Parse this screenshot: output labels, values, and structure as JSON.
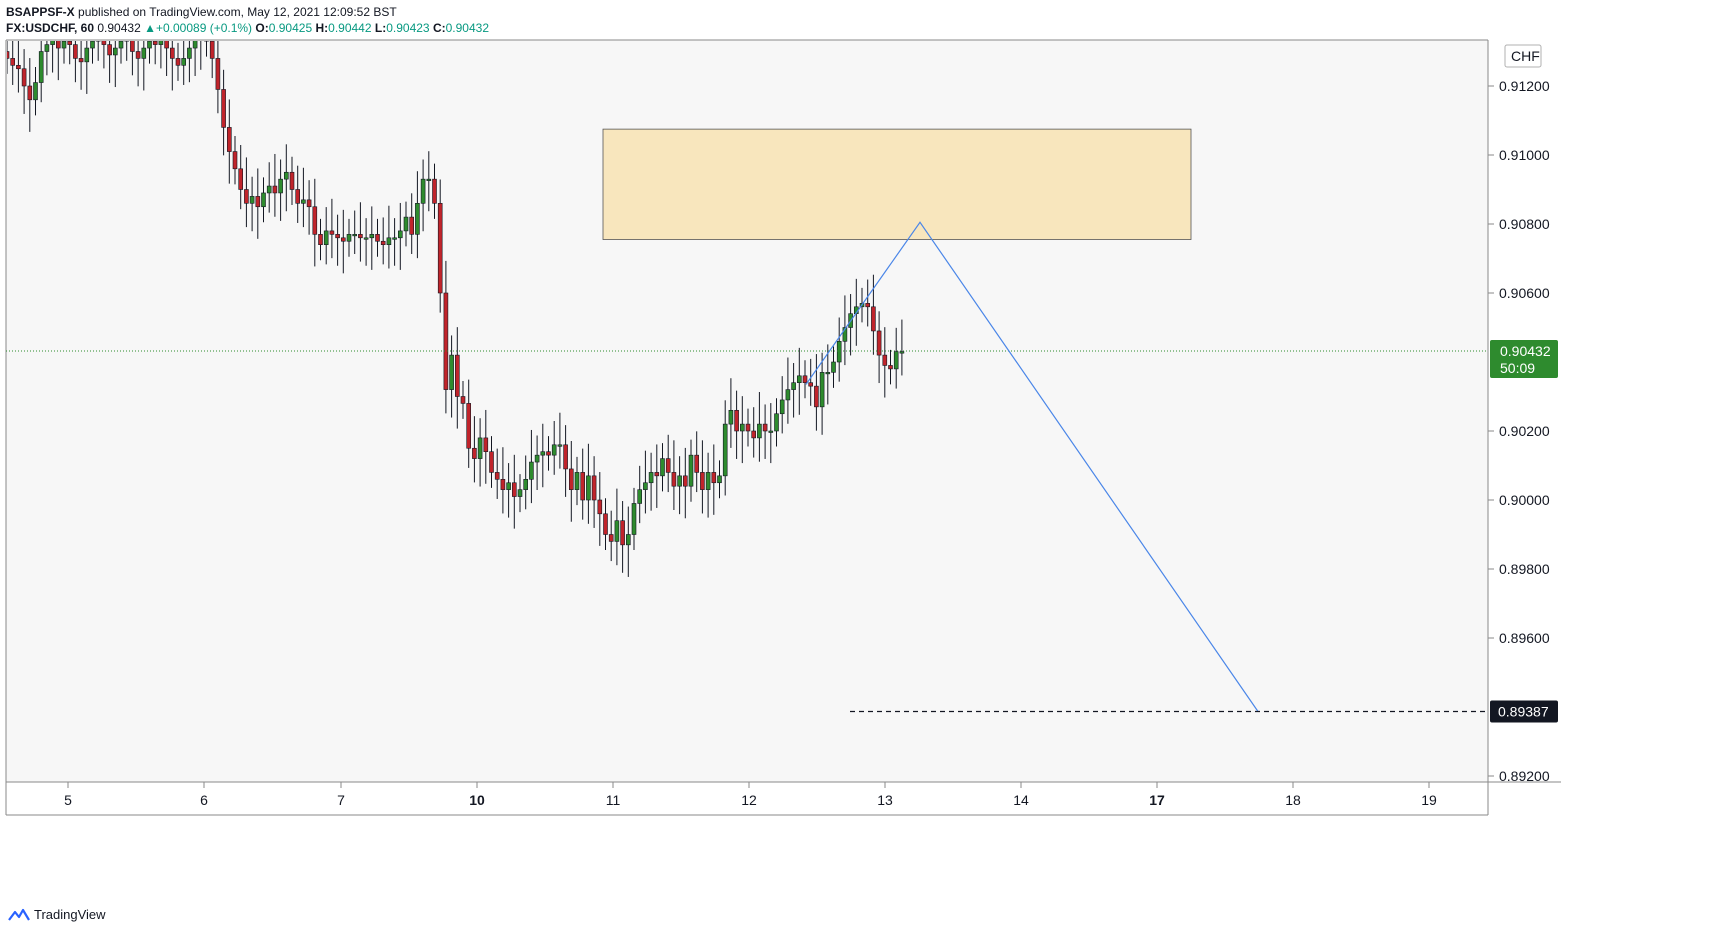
{
  "header": {
    "author": "BSAPPSF-X",
    "published_text": "published on TradingView.com, May 12, 2021 12:09:52 BST",
    "symbol": "FX:USDCHF, 60",
    "last": "0.90432",
    "change_arrow": "▲",
    "change": "+0.00089 (+0.1%)",
    "o_label": "O:",
    "o_value": "0.90425",
    "h_label": "H:",
    "h_value": "0.90442",
    "l_label": "L:",
    "l_value": "0.90423",
    "c_label": "C:",
    "c_value": "0.90432"
  },
  "price_axis": {
    "currency": "CHF",
    "current_price": "0.90432",
    "countdown": "50:09",
    "target_price": "0.89387"
  },
  "footer": {
    "brand": "TradingView",
    "logo_icon": "tradingview-logo-icon"
  },
  "colors": {
    "up": "#2e8b2e",
    "down": "#c0242b",
    "wick": "#131722",
    "zone_fill": "#f8e6bd",
    "zone_stroke": "#555555",
    "projection": "#4a86e8",
    "current_price": "#2e8b2e",
    "target_line": "#131722",
    "background": "#f7f7f7"
  },
  "chart_data": {
    "type": "candlestick",
    "timeframe": "60",
    "symbol": "FX:USDCHF",
    "y_ticks": [
      0.912,
      0.91,
      0.908,
      0.906,
      0.902,
      0.9,
      0.898,
      0.896,
      0.892
    ],
    "x_ticks": [
      {
        "label": "5",
        "bold": false
      },
      {
        "label": "6",
        "bold": false
      },
      {
        "label": "7",
        "bold": false
      },
      {
        "label": "10",
        "bold": true
      },
      {
        "label": "11",
        "bold": false
      },
      {
        "label": "12",
        "bold": false
      },
      {
        "label": "13",
        "bold": false
      },
      {
        "label": "14",
        "bold": false
      },
      {
        "label": "17",
        "bold": true
      },
      {
        "label": "18",
        "bold": false
      },
      {
        "label": "19",
        "bold": false
      }
    ],
    "current_price": 0.90432,
    "target_price": 0.89387,
    "resistance_zone": {
      "low": 0.90755,
      "high": 0.91075,
      "from_label": "11",
      "to_label": "13"
    },
    "projection_path": [
      {
        "date": "12",
        "price": 0.90335
      },
      {
        "date": "13",
        "price": 0.90805
      },
      {
        "date": "17",
        "price": 0.89387
      }
    ],
    "closes": [
      0.9128,
      0.9126,
      0.9125,
      0.912,
      0.9116,
      0.9121,
      0.913,
      0.9132,
      0.9134,
      0.9131,
      0.9133,
      0.9132,
      0.9128,
      0.9127,
      0.9131,
      0.9133,
      0.9135,
      0.9132,
      0.9129,
      0.9131,
      0.9133,
      0.9134,
      0.913,
      0.9128,
      0.9131,
      0.9133,
      0.9132,
      0.9134,
      0.9131,
      0.9128,
      0.9126,
      0.9128,
      0.9131,
      0.9134,
      0.9135,
      0.9133,
      0.9128,
      0.9119,
      0.9108,
      0.9101,
      0.9096,
      0.909,
      0.9086,
      0.9088,
      0.9085,
      0.9089,
      0.9091,
      0.9089,
      0.9093,
      0.9095,
      0.909,
      0.9086,
      0.9087,
      0.9085,
      0.9077,
      0.9074,
      0.9078,
      0.9077,
      0.9076,
      0.9075,
      0.9077,
      0.9077,
      0.9076,
      0.9076,
      0.9077,
      0.9075,
      0.9074,
      0.9076,
      0.9076,
      0.9078,
      0.9082,
      0.9077,
      0.9086,
      0.9093,
      0.9093,
      0.9086,
      0.906,
      0.9032,
      0.9042,
      0.903,
      0.9028,
      0.9015,
      0.9012,
      0.9018,
      0.9014,
      0.9008,
      0.9006,
      0.9003,
      0.9005,
      0.9001,
      0.9003,
      0.9006,
      0.9011,
      0.9013,
      0.9014,
      0.9013,
      0.9016,
      0.9016,
      0.9009,
      0.9003,
      0.9008,
      0.9,
      0.9007,
      0.9,
      0.8996,
      0.899,
      0.8988,
      0.8994,
      0.8987,
      0.899,
      0.8999,
      0.9003,
      0.9005,
      0.9008,
      0.9007,
      0.9012,
      0.9008,
      0.9004,
      0.9007,
      0.9004,
      0.9013,
      0.9008,
      0.9003,
      0.9008,
      0.9005,
      0.9007,
      0.9022,
      0.9026,
      0.902,
      0.9022,
      0.902,
      0.9018,
      0.9022,
      0.902,
      0.902,
      0.9025,
      0.9029,
      0.9032,
      0.9034,
      0.9036,
      0.9034,
      0.9033,
      0.9027,
      0.9037,
      0.9037,
      0.904,
      0.9046,
      0.905,
      0.9054,
      0.9056,
      0.9057,
      0.9056,
      0.9049,
      0.9042,
      0.9039,
      0.9038,
      0.9043,
      0.9043
    ]
  }
}
